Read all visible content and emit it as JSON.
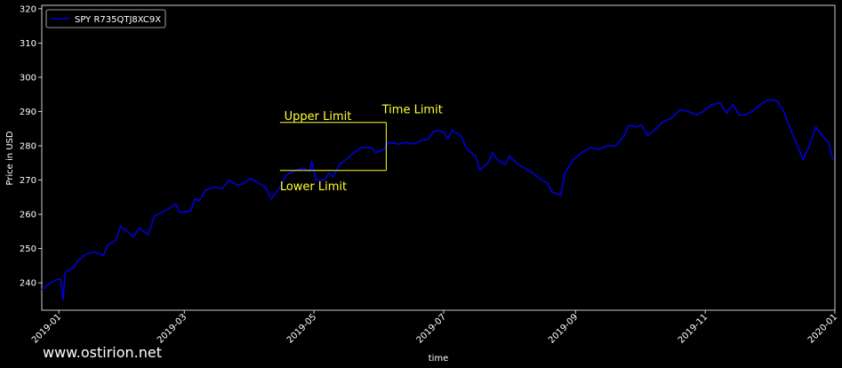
{
  "watermark": "www.ostirion.net",
  "colors": {
    "background": "#000000",
    "series": "#0000dd",
    "annotation": "#ffff33",
    "axes": "#ffffff"
  },
  "chart_data": {
    "type": "line",
    "title": "",
    "xlabel": "time",
    "ylabel": "Price in USD",
    "ylim": [
      232,
      321
    ],
    "xlim": [
      "2018-12-24",
      "2020-01-01"
    ],
    "grid": false,
    "legend_position": "top-left",
    "x_ticks": [
      "2019-01",
      "2019-03",
      "2019-05",
      "2019-07",
      "2019-09",
      "2019-11",
      "2020-01"
    ],
    "y_ticks": [
      240,
      250,
      260,
      270,
      280,
      290,
      300,
      310,
      320
    ],
    "series": [
      {
        "name": "SPY R735QTJ8XC9X",
        "points": [
          [
            "2018-12-24",
            238.0
          ],
          [
            "2018-12-27",
            239.5
          ],
          [
            "2018-12-31",
            241.0
          ],
          [
            "2019-01-02",
            241.0
          ],
          [
            "2019-01-03",
            235.0
          ],
          [
            "2019-01-04",
            243.0
          ],
          [
            "2019-01-08",
            244.5
          ],
          [
            "2019-01-10",
            246.5
          ],
          [
            "2019-01-14",
            248.5
          ],
          [
            "2019-01-18",
            249.0
          ],
          [
            "2019-01-22",
            248.0
          ],
          [
            "2019-01-24",
            251.0
          ],
          [
            "2019-01-28",
            252.5
          ],
          [
            "2019-01-30",
            256.5
          ],
          [
            "2019-02-01",
            255.5
          ],
          [
            "2019-02-05",
            253.5
          ],
          [
            "2019-02-08",
            256.0
          ],
          [
            "2019-02-12",
            254.0
          ],
          [
            "2019-02-15",
            259.5
          ],
          [
            "2019-02-20",
            261.0
          ],
          [
            "2019-02-25",
            263.0
          ],
          [
            "2019-02-27",
            260.5
          ],
          [
            "2019-03-04",
            261.0
          ],
          [
            "2019-03-06",
            264.5
          ],
          [
            "2019-03-08",
            264.0
          ],
          [
            "2019-03-11",
            267.0
          ],
          [
            "2019-03-15",
            268.0
          ],
          [
            "2019-03-19",
            267.5
          ],
          [
            "2019-03-22",
            270.0
          ],
          [
            "2019-03-26",
            268.5
          ],
          [
            "2019-03-29",
            269.0
          ],
          [
            "2019-04-01",
            270.5
          ],
          [
            "2019-04-04",
            269.5
          ],
          [
            "2019-04-08",
            268.0
          ],
          [
            "2019-04-11",
            264.5
          ],
          [
            "2019-04-15",
            268.0
          ],
          [
            "2019-04-18",
            271.5
          ],
          [
            "2019-04-23",
            273.0
          ],
          [
            "2019-04-26",
            273.5
          ],
          [
            "2019-04-29",
            272.5
          ],
          [
            "2019-04-30",
            275.5
          ],
          [
            "2019-05-02",
            270.0
          ],
          [
            "2019-05-06",
            270.0
          ],
          [
            "2019-05-08",
            272.0
          ],
          [
            "2019-05-10",
            271.0
          ],
          [
            "2019-05-13",
            274.5
          ],
          [
            "2019-05-16",
            276.0
          ],
          [
            "2019-05-20",
            278.0
          ],
          [
            "2019-05-23",
            279.5
          ],
          [
            "2019-05-28",
            279.5
          ],
          [
            "2019-05-30",
            278.0
          ],
          [
            "2019-06-03",
            279.0
          ],
          [
            "2019-06-05",
            281.0
          ],
          [
            "2019-06-10",
            280.5
          ],
          [
            "2019-06-13",
            281.0
          ],
          [
            "2019-06-17",
            280.5
          ],
          [
            "2019-06-20",
            281.5
          ],
          [
            "2019-06-24",
            282.0
          ],
          [
            "2019-06-26",
            284.0
          ],
          [
            "2019-06-28",
            284.5
          ],
          [
            "2019-07-01",
            284.0
          ],
          [
            "2019-07-03",
            282.0
          ],
          [
            "2019-07-05",
            284.5
          ],
          [
            "2019-07-09",
            283.0
          ],
          [
            "2019-07-12",
            279.0
          ],
          [
            "2019-07-16",
            277.0
          ],
          [
            "2019-07-18",
            273.0
          ],
          [
            "2019-07-22",
            275.0
          ],
          [
            "2019-07-24",
            278.0
          ],
          [
            "2019-07-26",
            276.0
          ],
          [
            "2019-07-30",
            274.5
          ],
          [
            "2019-08-01",
            277.0
          ],
          [
            "2019-08-05",
            274.5
          ],
          [
            "2019-08-08",
            273.5
          ],
          [
            "2019-08-12",
            272.0
          ],
          [
            "2019-08-15",
            270.5
          ],
          [
            "2019-08-19",
            269.0
          ],
          [
            "2019-08-21",
            266.5
          ],
          [
            "2019-08-25",
            265.5
          ],
          [
            "2019-08-27",
            272.0
          ],
          [
            "2019-08-31",
            276.0
          ],
          [
            "2019-09-04",
            278.0
          ],
          [
            "2019-09-08",
            279.5
          ],
          [
            "2019-09-12",
            279.0
          ],
          [
            "2019-09-16",
            280.0
          ],
          [
            "2019-09-20",
            280.0
          ],
          [
            "2019-09-24",
            283.0
          ],
          [
            "2019-09-26",
            286.0
          ],
          [
            "2019-09-30",
            285.5
          ],
          [
            "2019-10-02",
            286.0
          ],
          [
            "2019-10-05",
            283.0
          ],
          [
            "2019-10-09",
            285.0
          ],
          [
            "2019-10-12",
            287.0
          ],
          [
            "2019-10-16",
            288.0
          ],
          [
            "2019-10-20",
            290.5
          ],
          [
            "2019-10-24",
            290.0
          ],
          [
            "2019-10-28",
            289.0
          ],
          [
            "2019-10-31",
            290.0
          ],
          [
            "2019-11-04",
            292.0
          ],
          [
            "2019-11-08",
            292.5
          ],
          [
            "2019-11-11",
            289.5
          ],
          [
            "2019-11-14",
            292.0
          ],
          [
            "2019-11-17",
            289.0
          ],
          [
            "2019-11-20",
            289.0
          ],
          [
            "2019-11-23",
            290.0
          ],
          [
            "2019-11-25",
            291.0
          ],
          [
            "2019-11-28",
            292.5
          ],
          [
            "2019-12-01",
            293.5
          ],
          [
            "2019-12-05",
            293.0
          ],
          [
            "2019-12-08",
            290.0
          ],
          [
            "2019-12-11",
            285.0
          ],
          [
            "2019-12-14",
            280.5
          ],
          [
            "2019-12-17",
            276.0
          ],
          [
            "2019-12-20",
            280.0
          ],
          [
            "2019-12-23",
            285.5
          ],
          [
            "2019-12-26",
            283.0
          ],
          [
            "2019-12-29",
            281.0
          ],
          [
            "2019-12-31",
            276.0
          ]
        ]
      }
    ],
    "annotations": [
      {
        "text": "Upper Limit",
        "x": "2019-04-17",
        "y": 287.5
      },
      {
        "text": "Lower Limit",
        "x": "2019-04-15",
        "y": 267.0
      },
      {
        "text": "Time Limit",
        "x": "2019-06-02",
        "y": 289.5
      }
    ],
    "limit_box": {
      "x_start": "2019-04-15",
      "x_end": "2019-06-04",
      "upper": 286.8,
      "lower": 272.8
    }
  }
}
